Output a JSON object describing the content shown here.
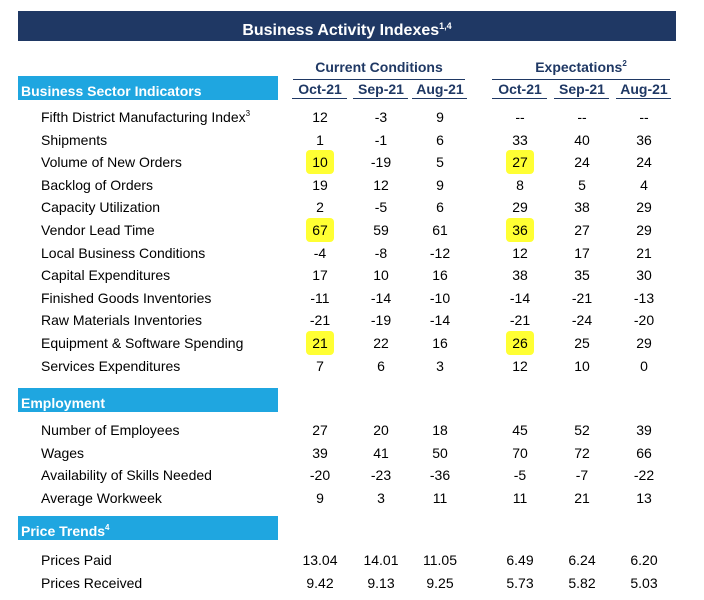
{
  "title": {
    "text": "Business Activity Indexes",
    "sup": "1,4"
  },
  "groups": {
    "current": {
      "label": "Current Conditions",
      "sup": ""
    },
    "expect": {
      "label": "Expectations",
      "sup": "2"
    }
  },
  "columns": [
    "Oct-21",
    "Sep-21",
    "Aug-21",
    "Oct-21",
    "Sep-21",
    "Aug-21"
  ],
  "highlight_color": "#ffff33",
  "header_color": "#1f3864",
  "section_color": "#1fa6e0",
  "sections": [
    {
      "title": "Business Sector Indicators",
      "sup": "",
      "rows": [
        {
          "label": "Fifth District Manufacturing Index",
          "sup": "3",
          "values": [
            "12",
            "-3",
            "9",
            "--",
            "--",
            "--"
          ],
          "highlight": []
        },
        {
          "label": "Shipments",
          "sup": "",
          "values": [
            "1",
            "-1",
            "6",
            "33",
            "40",
            "36"
          ],
          "highlight": []
        },
        {
          "label": "Volume of New Orders",
          "sup": "",
          "values": [
            "10",
            "-19",
            "5",
            "27",
            "24",
            "24"
          ],
          "highlight": [
            0,
            3
          ]
        },
        {
          "label": "Backlog of Orders",
          "sup": "",
          "values": [
            "19",
            "12",
            "9",
            "8",
            "5",
            "4"
          ],
          "highlight": []
        },
        {
          "label": "Capacity Utilization",
          "sup": "",
          "values": [
            "2",
            "-5",
            "6",
            "29",
            "38",
            "29"
          ],
          "highlight": []
        },
        {
          "label": "Vendor Lead Time",
          "sup": "",
          "values": [
            "67",
            "59",
            "61",
            "36",
            "27",
            "29"
          ],
          "highlight": [
            0,
            3
          ]
        },
        {
          "label": "Local Business Conditions",
          "sup": "",
          "values": [
            "-4",
            "-8",
            "-12",
            "12",
            "17",
            "21"
          ],
          "highlight": []
        },
        {
          "label": "Capital Expenditures",
          "sup": "",
          "values": [
            "17",
            "10",
            "16",
            "38",
            "35",
            "30"
          ],
          "highlight": []
        },
        {
          "label": "Finished Goods Inventories",
          "sup": "",
          "values": [
            "-11",
            "-14",
            "-10",
            "-14",
            "-21",
            "-13"
          ],
          "highlight": []
        },
        {
          "label": "Raw Materials Inventories",
          "sup": "",
          "values": [
            "-21",
            "-19",
            "-14",
            "-21",
            "-24",
            "-20"
          ],
          "highlight": []
        },
        {
          "label": "Equipment & Software Spending",
          "sup": "",
          "values": [
            "21",
            "22",
            "16",
            "26",
            "25",
            "29"
          ],
          "highlight": [
            0,
            3
          ]
        },
        {
          "label": "Services Expenditures",
          "sup": "",
          "values": [
            "7",
            "6",
            "3",
            "12",
            "10",
            "0"
          ],
          "highlight": []
        }
      ]
    },
    {
      "title": "Employment",
      "sup": "",
      "rows": [
        {
          "label": "Number of Employees",
          "sup": "",
          "values": [
            "27",
            "20",
            "18",
            "45",
            "52",
            "39"
          ],
          "highlight": []
        },
        {
          "label": "Wages",
          "sup": "",
          "values": [
            "39",
            "41",
            "50",
            "70",
            "72",
            "66"
          ],
          "highlight": []
        },
        {
          "label": "Availability of Skills Needed",
          "sup": "",
          "values": [
            "-20",
            "-23",
            "-36",
            "-5",
            "-7",
            "-22"
          ],
          "highlight": []
        },
        {
          "label": "Average Workweek",
          "sup": "",
          "values": [
            "9",
            "3",
            "11",
            "11",
            "21",
            "13"
          ],
          "highlight": []
        }
      ]
    },
    {
      "title": "Price Trends",
      "sup": "4",
      "rows": [
        {
          "label": "Prices Paid",
          "sup": "",
          "values": [
            "13.04",
            "14.01",
            "11.05",
            "6.49",
            "6.24",
            "6.20"
          ],
          "highlight": []
        },
        {
          "label": "Prices Received",
          "sup": "",
          "values": [
            "9.42",
            "9.13",
            "9.25",
            "5.73",
            "5.82",
            "5.03"
          ],
          "highlight": []
        }
      ]
    }
  ]
}
